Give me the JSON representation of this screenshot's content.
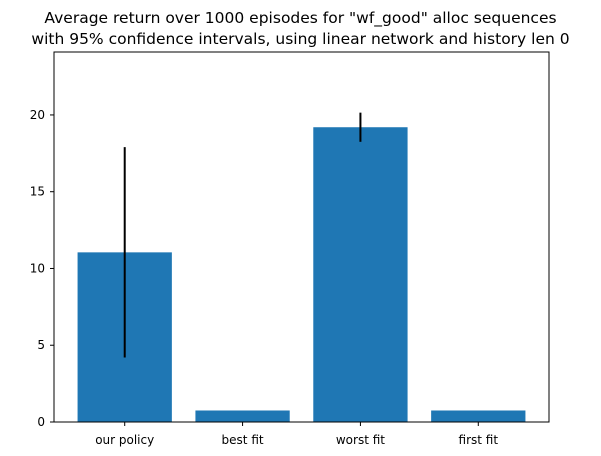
{
  "chart_data": {
    "type": "bar",
    "title_lines": [
      "Average return over 1000 episodes for \"wf_good\" alloc sequences",
      "with 95% confidence intervals, using linear network and history len 0"
    ],
    "xlabel": "",
    "ylabel": "",
    "categories": [
      "our policy",
      "best fit",
      "worst fit",
      "first fit"
    ],
    "values": [
      11.05,
      0.75,
      19.2,
      0.75
    ],
    "error_low": [
      4.2,
      null,
      18.25,
      null
    ],
    "error_high": [
      17.9,
      null,
      20.15,
      null
    ],
    "ylim": [
      0,
      24.1
    ],
    "yticks": [
      0,
      5,
      10,
      15,
      20
    ],
    "bar_color": "#1f77b4",
    "error_color": "#000000",
    "grid": false,
    "legend": "none"
  }
}
